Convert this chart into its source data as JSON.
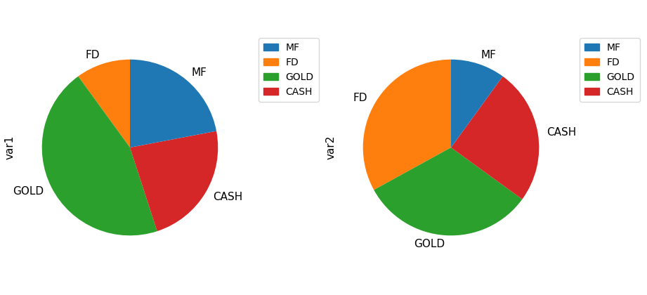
{
  "chart1": {
    "label": "var1",
    "values": [
      10,
      45,
      23,
      22
    ],
    "slice_labels": [
      "FD",
      "GOLD",
      "CASH",
      "MF"
    ],
    "slice_colors": [
      "#ff7f0e",
      "#2ca02c",
      "#d62728",
      "#1f77b4"
    ]
  },
  "chart2": {
    "label": "var2",
    "values": [
      33,
      32,
      25,
      10
    ],
    "slice_labels": [
      "FD",
      "GOLD",
      "CASH",
      "MF"
    ],
    "slice_colors": [
      "#ff7f0e",
      "#2ca02c",
      "#d62728",
      "#1f77b4"
    ]
  },
  "colors": [
    "#1f77b4",
    "#ff7f0e",
    "#2ca02c",
    "#d62728"
  ],
  "legend_labels": [
    "MF",
    "FD",
    "GOLD",
    "CASH"
  ],
  "startangle": 90,
  "counterclock": true,
  "background_color": "#ffffff",
  "label_fontsize": 11,
  "ylabel_fontsize": 11
}
